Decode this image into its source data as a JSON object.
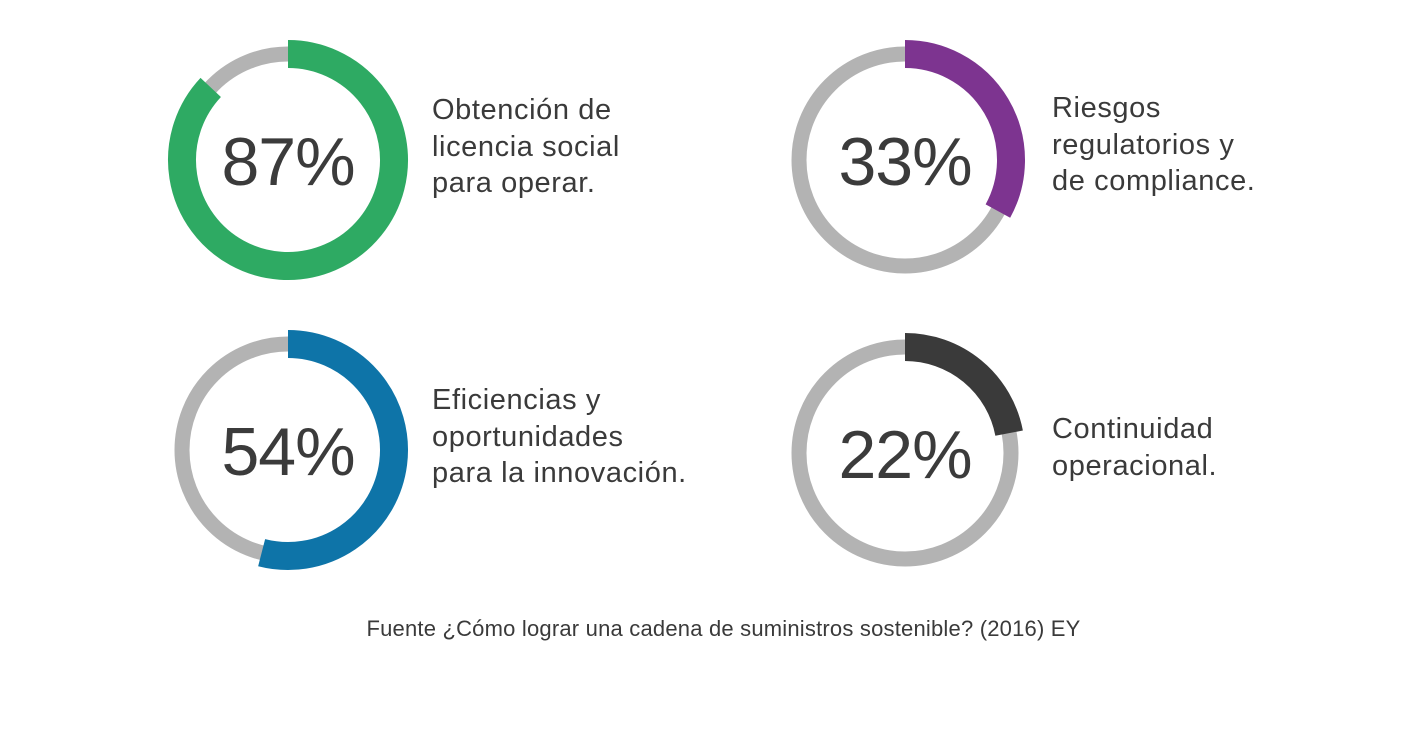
{
  "chart_data": [
    {
      "type": "pie",
      "value": 87,
      "value_label": "87%",
      "label_lines": [
        "Obtención de",
        "licencia social",
        "para operar."
      ],
      "color": "#2eaa63",
      "track_color": "#b3b3b3"
    },
    {
      "type": "pie",
      "value": 33,
      "value_label": "33%",
      "label_lines": [
        "Riesgos",
        "regulatorios y",
        "de compliance."
      ],
      "color": "#7d3490",
      "track_color": "#b3b3b3"
    },
    {
      "type": "pie",
      "value": 54,
      "value_label": "54%",
      "label_lines": [
        "Eficiencias y",
        "oportunidades",
        "para la innovación."
      ],
      "color": "#0e74a8",
      "track_color": "#b3b3b3"
    },
    {
      "type": "pie",
      "value": 22,
      "value_label": "22%",
      "label_lines": [
        "Continuidad",
        "operacional."
      ],
      "color": "#3a3a3a",
      "track_color": "#b3b3b3"
    }
  ],
  "footnote": "Fuente ¿Cómo lograr una cadena de suministros sostenible? (2016) EY"
}
